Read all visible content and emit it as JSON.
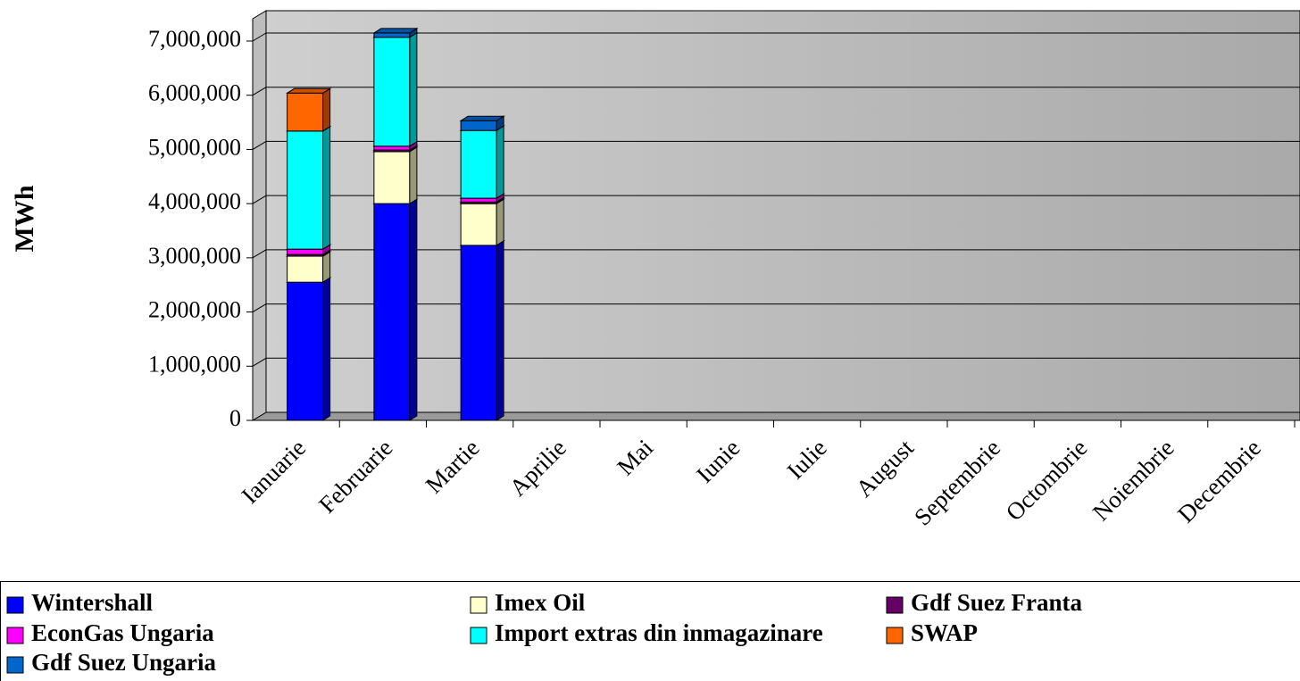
{
  "chart_data": {
    "type": "bar",
    "stacked": true,
    "y_label": "MWh",
    "categories": [
      "Ianuarie",
      "Februarie",
      "Martie",
      "Aprilie",
      "Mai",
      "Iunie",
      "Iulie",
      "August",
      "Septembrie",
      "Octombrie",
      "Noiembrie",
      "Decembrie"
    ],
    "series": [
      {
        "name": "Wintershall",
        "color": "#0000ff",
        "values": [
          2550000,
          4000000,
          3230000,
          0,
          0,
          0,
          0,
          0,
          0,
          0,
          0,
          0
        ]
      },
      {
        "name": "Imex Oil",
        "color": "#ffffcc",
        "values": [
          480000,
          960000,
          770000,
          0,
          0,
          0,
          0,
          0,
          0,
          0,
          0,
          0
        ]
      },
      {
        "name": "Gdf Suez Franta",
        "color": "#660066",
        "values": [
          30000,
          30000,
          30000,
          0,
          0,
          0,
          0,
          0,
          0,
          0,
          0,
          0
        ]
      },
      {
        "name": "EconGas Ungaria",
        "color": "#ff00ff",
        "values": [
          100000,
          70000,
          70000,
          0,
          0,
          0,
          0,
          0,
          0,
          0,
          0,
          0
        ]
      },
      {
        "name": "Import extras din inmagazinare",
        "color": "#00ffff",
        "values": [
          2180000,
          2010000,
          1250000,
          0,
          0,
          0,
          0,
          0,
          0,
          0,
          0,
          0
        ]
      },
      {
        "name": "SWAP",
        "color": "#ff6600",
        "values": [
          700000,
          0,
          0,
          0,
          0,
          0,
          0,
          0,
          0,
          0,
          0,
          0
        ]
      },
      {
        "name": "Gdf Suez Ungaria",
        "color": "#0066cc",
        "values": [
          0,
          80000,
          180000,
          0,
          0,
          0,
          0,
          0,
          0,
          0,
          0,
          0
        ]
      }
    ],
    "ylim": [
      0,
      7000000
    ],
    "yticks": [
      0,
      {
        "value": 1000000,
        "label": "1,000,000"
      },
      {
        "value": 2000000,
        "label": "2,000,000"
      },
      {
        "value": 3000000,
        "label": "3,000,000"
      },
      {
        "value": 4000000,
        "label": "4,000,000"
      },
      {
        "value": 5000000,
        "label": "5,000,000"
      },
      {
        "value": 6000000,
        "label": "6,000,000"
      },
      {
        "value": 7000000,
        "label": "7,000,000"
      }
    ],
    "grid": true,
    "legend": "bottom"
  }
}
